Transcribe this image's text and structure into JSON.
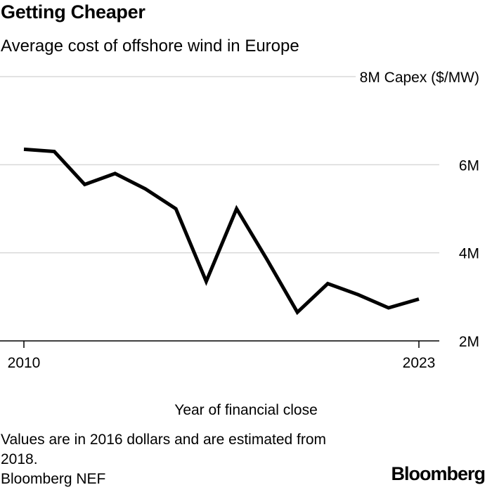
{
  "header": {
    "title": "Getting Cheaper",
    "subtitle": "Average cost of offshore wind in Europe"
  },
  "footer": {
    "note": "Values are in 2016 dollars and are estimated from 2018.",
    "source": "Bloomberg NEF",
    "logo": "Bloomberg"
  },
  "colors": {
    "line": "#000000",
    "grid": "#d9d9d9",
    "axis": "#000000",
    "background": "#ffffff"
  },
  "chart_data": {
    "type": "line",
    "title": "Getting Cheaper",
    "subtitle": "Average cost of offshore wind in Europe",
    "xlabel": "Year of financial close",
    "ylabel": "Capex ($/MW)",
    "xlim": [
      2010,
      2023
    ],
    "ylim": [
      2000000,
      8000000
    ],
    "x_ticks": [
      {
        "value": 2010,
        "label": "2010"
      },
      {
        "value": 2023,
        "label": "2023"
      }
    ],
    "y_ticks": [
      {
        "value": 2000000,
        "label": "2M"
      },
      {
        "value": 4000000,
        "label": "4M"
      },
      {
        "value": 6000000,
        "label": "6M"
      },
      {
        "value": 8000000,
        "label": "8M Capex ($/MW)"
      }
    ],
    "grid": true,
    "y_axis_position": "right",
    "series": [
      {
        "x": [
          2010,
          2011,
          2012,
          2013,
          2014,
          2015,
          2016,
          2017,
          2018,
          2019,
          2020,
          2021,
          2022,
          2023
        ],
        "values": [
          6350000,
          6300000,
          5550000,
          5800000,
          5450000,
          5000000,
          3350000,
          5000000,
          3850000,
          2650000,
          3300000,
          3050000,
          2750000,
          2950000
        ]
      }
    ]
  }
}
